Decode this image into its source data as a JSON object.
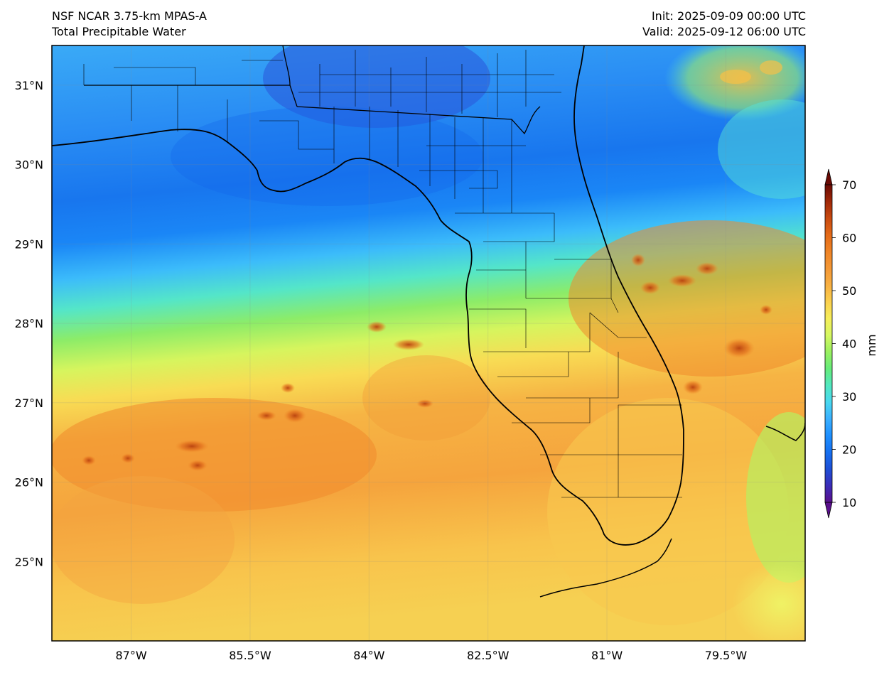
{
  "header": {
    "model": "NSF NCAR 3.75-km MPAS-A",
    "field": "Total Precipitable Water",
    "init": "Init: 2025-09-09 00:00 UTC",
    "valid": "Valid: 2025-09-12 06:00 UTC"
  },
  "map": {
    "lat_labels": [
      "31°N",
      "30°N",
      "29°N",
      "28°N",
      "27°N",
      "26°N",
      "25°N"
    ],
    "lat_values": [
      31,
      30,
      29,
      28,
      27,
      26,
      25
    ],
    "lon_labels": [
      "87°W",
      "85.5°W",
      "84°W",
      "82.5°W",
      "81°W",
      "79.5°W"
    ],
    "lon_values": [
      -87,
      -85.5,
      -84,
      -82.5,
      -81,
      -79.5
    ],
    "extent": {
      "lon_min": -88,
      "lon_max": -78.5,
      "lat_min": 24,
      "lat_max": 31.5
    }
  },
  "colorbar": {
    "label": "mm",
    "tick_labels": [
      "70",
      "60",
      "50",
      "40",
      "30",
      "20",
      "10"
    ],
    "tick_values": [
      70,
      60,
      50,
      40,
      30,
      20,
      10
    ],
    "range": [
      10,
      70
    ],
    "colormap": [
      "#5a0f8c",
      "#3b2db8",
      "#1d4fd6",
      "#1670f0",
      "#1e90ff",
      "#3bb0ff",
      "#49d8f0",
      "#52e8c0",
      "#66ec7a",
      "#9af060",
      "#d6f862",
      "#f6ee5a",
      "#fbd04e",
      "#f8b042",
      "#f49836",
      "#ef8426",
      "#e46a18",
      "#c84a10",
      "#a02808",
      "#6a0a04"
    ]
  }
}
